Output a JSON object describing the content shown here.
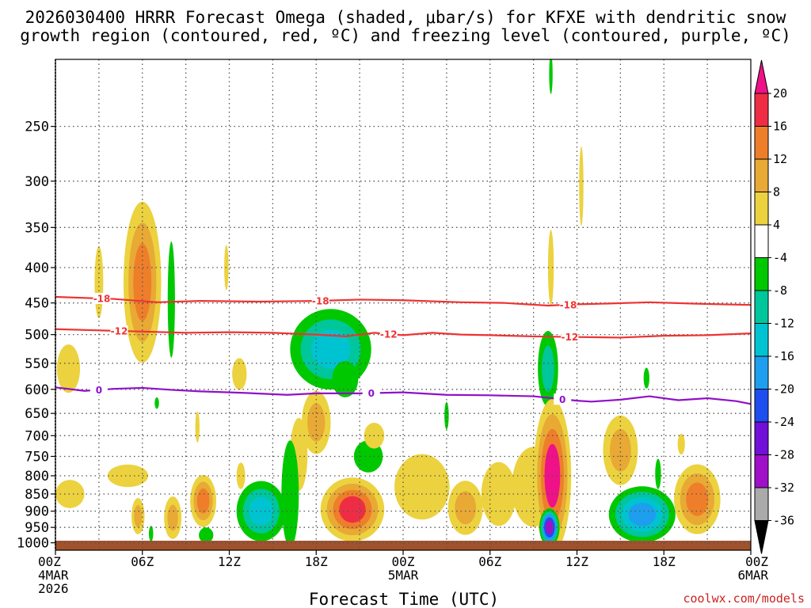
{
  "chart_data": {
    "type": "time-height-contour",
    "title_line1": "2026030400 HRRR Forecast Omega (shaded, μbar/s) for KFXE with dendritic snow",
    "title_line2": "growth region (contoured, red, ºC) and freezing level (contoured, purple, ºC)",
    "xlabel": "Forecast Time (UTC)",
    "credit": "coolwx.com/models",
    "y_ticks": [
      250,
      300,
      350,
      400,
      450,
      500,
      550,
      600,
      650,
      700,
      750,
      800,
      850,
      900,
      950,
      1000
    ],
    "ylim_hpa": [
      200,
      1025
    ],
    "xlim_hours": [
      0,
      48
    ],
    "x_ticks": [
      {
        "h": 0,
        "l1": "00Z",
        "l2": "4MAR",
        "l3": "2026"
      },
      {
        "h": 6,
        "l1": "06Z"
      },
      {
        "h": 12,
        "l1": "12Z"
      },
      {
        "h": 18,
        "l1": "18Z"
      },
      {
        "h": 24,
        "l1": "00Z",
        "l2": "5MAR"
      },
      {
        "h": 30,
        "l1": "06Z"
      },
      {
        "h": 36,
        "l1": "12Z"
      },
      {
        "h": 42,
        "l1": "18Z"
      },
      {
        "h": 48,
        "l1": "00Z",
        "l2": "6MAR"
      }
    ],
    "colorbar": {
      "labels": [
        "20",
        "16",
        "12",
        "8",
        "4",
        "-4",
        "-8",
        "-12",
        "-16",
        "-20",
        "-24",
        "-28",
        "-32",
        "-36"
      ],
      "colors": [
        "#ee2d45",
        "#ee7e2a",
        "#e8a935",
        "#ecd23f",
        "#ffffff",
        "#00c800",
        "#00c69c",
        "#00c3d2",
        "#1e9eee",
        "#1e4ef0",
        "#7010d8",
        "#a010c8",
        "#aaaaaa"
      ],
      "top_color": "#ee1188",
      "bottom_color": "#000000"
    },
    "contours": [
      {
        "name": "dendritic -18C",
        "label": "-18",
        "color": "#ee3333",
        "hours": [
          0,
          4,
          7,
          10,
          14,
          18,
          21,
          24,
          28,
          31,
          34,
          36,
          38,
          41,
          44,
          48
        ],
        "hpa": [
          441,
          444,
          449,
          447,
          448,
          447,
          445,
          446,
          449,
          450,
          454,
          452,
          451,
          449,
          451,
          453
        ],
        "label_hours": [
          3.2,
          18.3,
          35.4
        ]
      },
      {
        "name": "dendritic -12C",
        "label": "-12",
        "color": "#ee3333",
        "hours": [
          0,
          3,
          6,
          9,
          12,
          15,
          18,
          20,
          22,
          24,
          26,
          28,
          30,
          33,
          36,
          39,
          42,
          45,
          48
        ],
        "hpa": [
          491,
          493,
          495,
          497,
          496,
          497,
          500,
          503,
          497,
          501,
          497,
          500,
          501,
          503,
          504,
          505,
          502,
          501,
          498
        ],
        "label_hours": [
          4.4,
          23.0,
          35.5
        ]
      },
      {
        "name": "freezing level 0C",
        "label": "0",
        "color": "#9010c8",
        "hours": [
          0,
          2,
          4,
          6,
          8,
          10,
          13,
          16,
          18,
          21,
          24,
          27,
          30,
          33,
          36,
          37,
          39,
          41,
          43,
          45,
          47,
          48
        ],
        "hpa": [
          596,
          603,
          599,
          597,
          601,
          604,
          607,
          611,
          608,
          608,
          606,
          611,
          612,
          614,
          623,
          625,
          621,
          614,
          622,
          618,
          624,
          630
        ],
        "label_hours": [
          3.0,
          21.8,
          35.0
        ]
      }
    ],
    "omega_blobs": [
      {
        "h": 0.9,
        "p": 560,
        "rh": 0.8,
        "rp": 45,
        "levels": [
          4
        ]
      },
      {
        "h": 3.0,
        "p": 420,
        "rh": 0.3,
        "rp": 50,
        "levels": [
          4
        ]
      },
      {
        "h": 6.0,
        "p": 420,
        "rh": 1.3,
        "rp": 110,
        "levels": [
          4,
          8,
          12
        ]
      },
      {
        "h": 8.0,
        "p": 445,
        "rh": 0.25,
        "rp": 85,
        "levels": [
          -4
        ]
      },
      {
        "h": 7.0,
        "p": 628,
        "rh": 0.15,
        "rp": 12,
        "levels": [
          -4
        ]
      },
      {
        "h": 11.8,
        "p": 400,
        "rh": 0.15,
        "rp": 30,
        "levels": [
          4
        ]
      },
      {
        "h": 12.7,
        "p": 570,
        "rh": 0.5,
        "rp": 30,
        "levels": [
          4
        ]
      },
      {
        "h": 19.0,
        "p": 525,
        "rh": 2.8,
        "rp": 70,
        "levels": [
          -4,
          -8,
          -12
        ]
      },
      {
        "h": 20.0,
        "p": 580,
        "rh": 0.9,
        "rp": 35,
        "levels": [
          -4
        ]
      },
      {
        "h": 27.0,
        "p": 655,
        "rh": 0.15,
        "rp": 30,
        "levels": [
          -4
        ]
      },
      {
        "h": 34.0,
        "p": 560,
        "rh": 0.7,
        "rp": 70,
        "levels": [
          -4,
          -8
        ]
      },
      {
        "h": 34.2,
        "p": 400,
        "rh": 0.2,
        "rp": 50,
        "levels": [
          4
        ]
      },
      {
        "h": 34.2,
        "p": 210,
        "rh": 0.12,
        "rp": 14,
        "levels": [
          -4
        ]
      },
      {
        "h": 36.3,
        "p": 305,
        "rh": 0.15,
        "rp": 40,
        "levels": [
          4
        ]
      },
      {
        "h": 40.8,
        "p": 578,
        "rh": 0.2,
        "rp": 20,
        "levels": [
          -4
        ]
      },
      {
        "h": 18.0,
        "p": 670,
        "rh": 1.0,
        "rp": 70,
        "levels": [
          4,
          8
        ]
      },
      {
        "h": 1.0,
        "p": 850,
        "rh": 1.0,
        "rp": 40,
        "levels": [
          4
        ]
      },
      {
        "h": 5.0,
        "p": 800,
        "rh": 1.4,
        "rp": 30,
        "levels": [
          4
        ]
      },
      {
        "h": 5.7,
        "p": 915,
        "rh": 0.45,
        "rp": 55,
        "levels": [
          4,
          8
        ]
      },
      {
        "h": 6.6,
        "p": 970,
        "rh": 0.15,
        "rp": 25,
        "levels": [
          -4
        ]
      },
      {
        "h": 8.1,
        "p": 920,
        "rh": 0.6,
        "rp": 65,
        "levels": [
          4,
          8
        ]
      },
      {
        "h": 9.8,
        "p": 680,
        "rh": 0.15,
        "rp": 35,
        "levels": [
          4
        ]
      },
      {
        "h": 10.2,
        "p": 870,
        "rh": 0.9,
        "rp": 75,
        "levels": [
          4,
          8,
          12
        ]
      },
      {
        "h": 10.4,
        "p": 975,
        "rh": 0.5,
        "rp": 25,
        "levels": [
          -4
        ]
      },
      {
        "h": 12.8,
        "p": 800,
        "rh": 0.3,
        "rp": 35,
        "levels": [
          4
        ]
      },
      {
        "h": 14.2,
        "p": 900,
        "rh": 1.7,
        "rp": 90,
        "levels": [
          -4,
          -8,
          -12
        ]
      },
      {
        "h": 16.8,
        "p": 745,
        "rh": 0.6,
        "rp": 90,
        "levels": [
          4
        ]
      },
      {
        "h": 16.2,
        "p": 850,
        "rh": 0.6,
        "rp": 150,
        "levels": [
          -4
        ]
      },
      {
        "h": 20.5,
        "p": 895,
        "rh": 2.2,
        "rp": 95,
        "levels": [
          4,
          8,
          12,
          16
        ]
      },
      {
        "h": 21.6,
        "p": 750,
        "rh": 1.0,
        "rp": 40,
        "levels": [
          -4
        ]
      },
      {
        "h": 22.0,
        "p": 700,
        "rh": 0.7,
        "rp": 30,
        "levels": [
          4
        ]
      },
      {
        "h": 25.3,
        "p": 830,
        "rh": 1.9,
        "rp": 90,
        "levels": [
          4
        ]
      },
      {
        "h": 28.3,
        "p": 890,
        "rh": 1.2,
        "rp": 80,
        "levels": [
          4,
          8
        ]
      },
      {
        "h": 30.6,
        "p": 850,
        "rh": 1.2,
        "rp": 90,
        "levels": [
          4
        ]
      },
      {
        "h": 33.0,
        "p": 830,
        "rh": 1.5,
        "rp": 110,
        "levels": [
          4
        ]
      },
      {
        "h": 34.3,
        "p": 800,
        "rh": 1.3,
        "rp": 200,
        "levels": [
          4,
          8,
          12,
          20
        ]
      },
      {
        "h": 34.1,
        "p": 950,
        "rh": 0.7,
        "rp": 60,
        "levels": [
          -4,
          -8,
          -16,
          -20,
          -28
        ]
      },
      {
        "h": 40.5,
        "p": 910,
        "rh": 2.3,
        "rp": 85,
        "levels": [
          -4,
          -8,
          -12,
          -16
        ]
      },
      {
        "h": 39.0,
        "p": 735,
        "rh": 1.2,
        "rp": 85,
        "levels": [
          4,
          8
        ]
      },
      {
        "h": 41.6,
        "p": 795,
        "rh": 0.2,
        "rp": 40,
        "levels": [
          -4
        ]
      },
      {
        "h": 43.2,
        "p": 720,
        "rh": 0.25,
        "rp": 25,
        "levels": [
          4
        ]
      },
      {
        "h": 44.3,
        "p": 865,
        "rh": 1.6,
        "rp": 100,
        "levels": [
          4,
          8,
          12
        ]
      }
    ]
  }
}
